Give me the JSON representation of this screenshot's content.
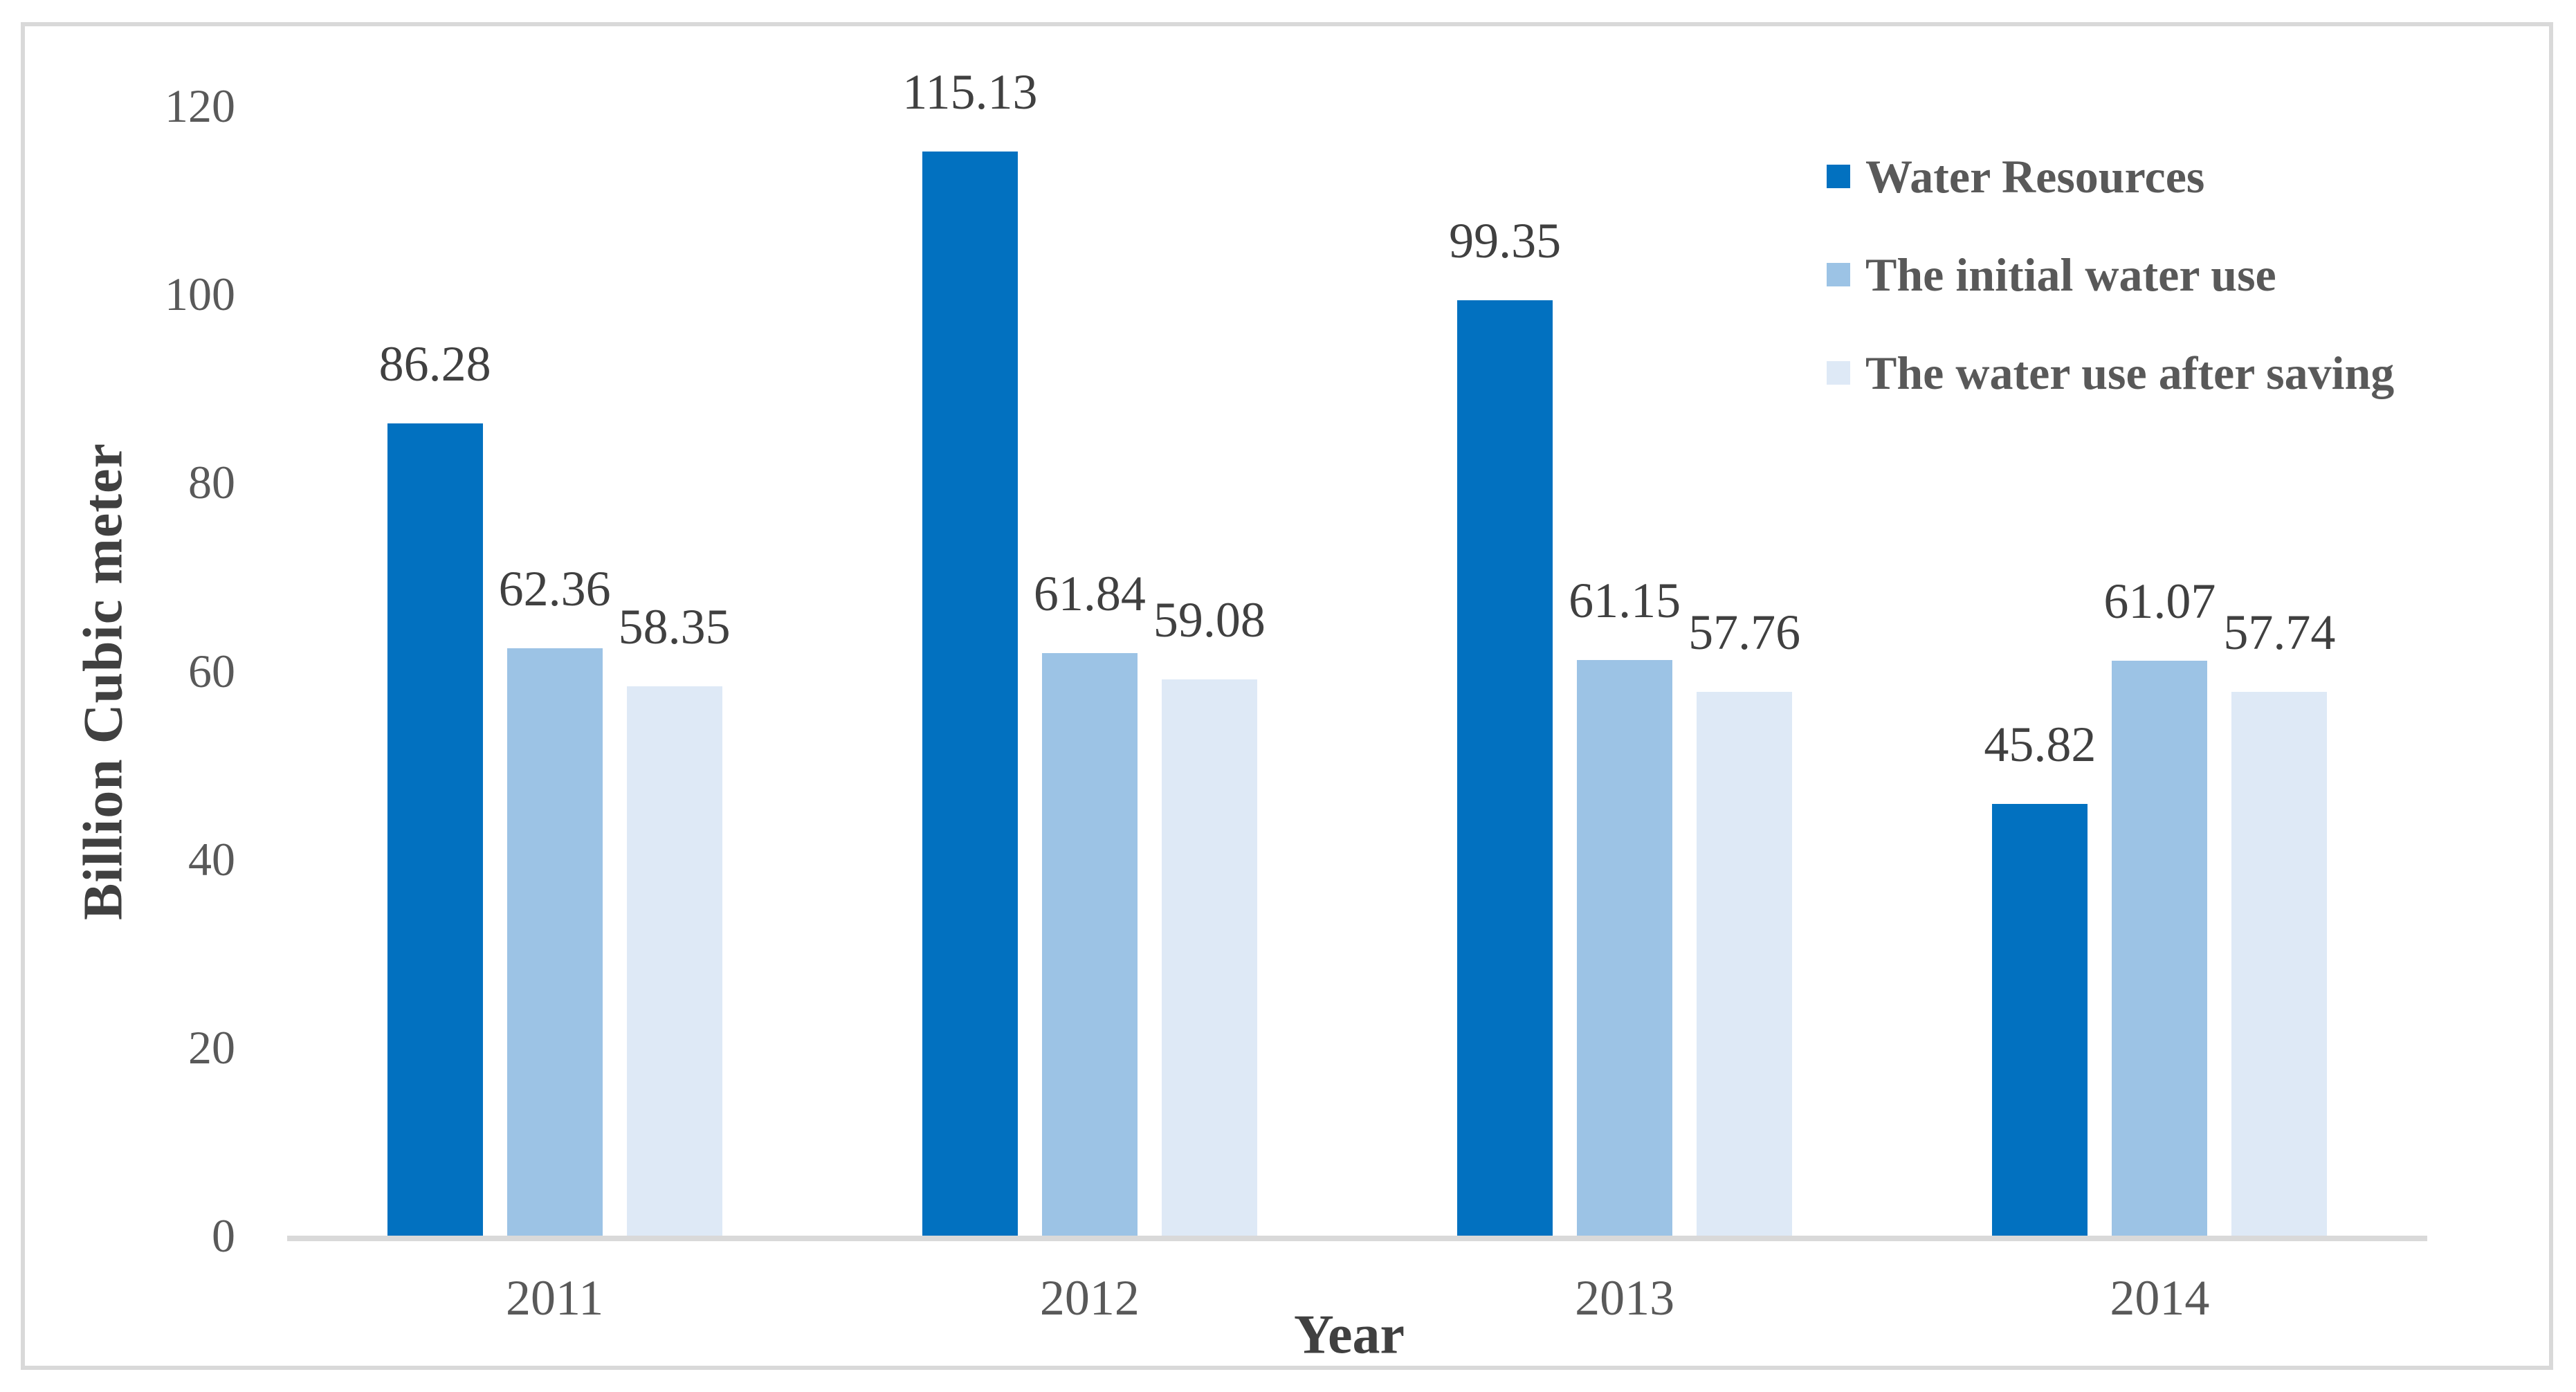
{
  "figure": {
    "background": "#FFFFFF",
    "frame_color": "#D9D9D9",
    "axis_line_color": "#D9D9D9",
    "tick_text_color": "#595959",
    "value_label_color": "#404040",
    "axis_title_color": "#404040",
    "legend_text_color": "#595959"
  },
  "chart_data": {
    "type": "bar",
    "title": "",
    "xlabel": "Year",
    "ylabel": "Billion Cubic meter",
    "categories": [
      "2011",
      "2012",
      "2013",
      "2014"
    ],
    "series": [
      {
        "name": "Water Resources",
        "color": "#0271C0",
        "values": [
          86.28,
          115.13,
          99.35,
          45.82
        ]
      },
      {
        "name": "The initial water use",
        "color": "#9CC3E5",
        "values": [
          62.36,
          61.84,
          61.15,
          61.07
        ]
      },
      {
        "name": "The water use after saving",
        "color": "#DEE9F6",
        "values": [
          58.35,
          59.08,
          57.76,
          57.74
        ]
      }
    ],
    "ylim": [
      0,
      120
    ],
    "yticks": [
      0,
      20,
      40,
      60,
      80,
      100,
      120
    ],
    "grid": false,
    "tick_marks": false,
    "legend_position": "top-right",
    "value_labels": true,
    "value_label_decimals": 2
  }
}
